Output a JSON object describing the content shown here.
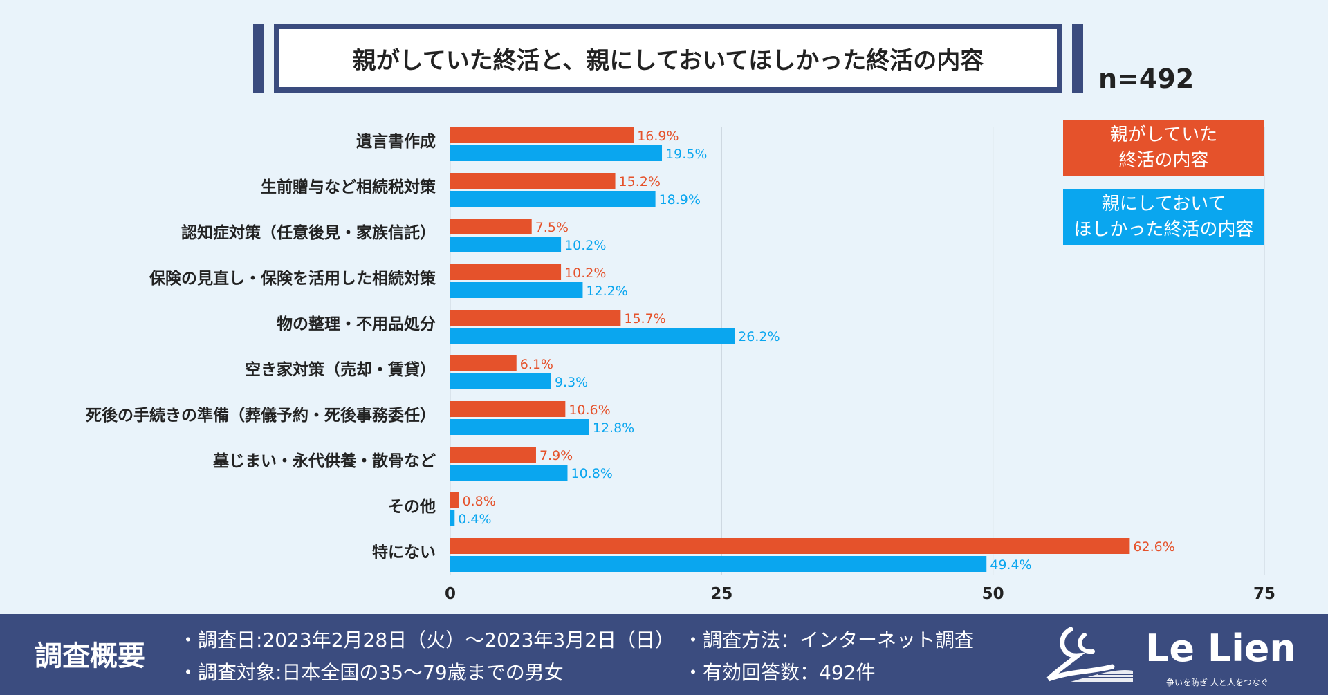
{
  "title": "親がしていた終活と、親にしておいてほしかった終活の内容",
  "sample_size": "n=492",
  "legend": [
    {
      "label": "親がしていた\n終活の内容",
      "color": "#e5522b"
    },
    {
      "label": "親にしておいて\nほしかった終活の内容",
      "color": "#0aa6ef"
    }
  ],
  "chart_data": {
    "type": "bar",
    "orientation": "horizontal",
    "categories": [
      "遺言書作成",
      "生前贈与など相続税対策",
      "認知症対策（任意後見・家族信託）",
      "保険の見直し・保険を活用した相続対策",
      "物の整理・不用品処分",
      "空き家対策（売却・賃貸）",
      "死後の手続きの準備（葬儀予約・死後事務委任）",
      "墓じまい・永代供養・散骨など",
      "その他",
      "特にない"
    ],
    "series": [
      {
        "name": "親がしていた終活の内容",
        "color": "#e5522b",
        "values": [
          16.9,
          15.2,
          7.5,
          10.2,
          15.7,
          6.1,
          10.6,
          7.9,
          0.8,
          62.6
        ]
      },
      {
        "name": "親にしておいてほしかった終活の内容",
        "color": "#0aa6ef",
        "values": [
          19.5,
          18.9,
          10.2,
          12.2,
          26.2,
          9.3,
          12.8,
          10.8,
          0.4,
          49.4
        ]
      }
    ],
    "value_suffix": "%",
    "xlim": [
      0,
      75
    ],
    "xticks": [
      0,
      25,
      50,
      75
    ],
    "grid": true
  },
  "footer": {
    "heading": "調査概要",
    "items": [
      "・調査日:2023年2月28日（火）～2023年3月2日（日）",
      "・調査方法：インターネット調査",
      "・調査対象:日本全国の35～79歳までの男女",
      "・有効回答数：492件"
    ],
    "logo_text": "Le Lien",
    "logo_tagline": "争いを防ぎ 人と人をつなぐ"
  }
}
